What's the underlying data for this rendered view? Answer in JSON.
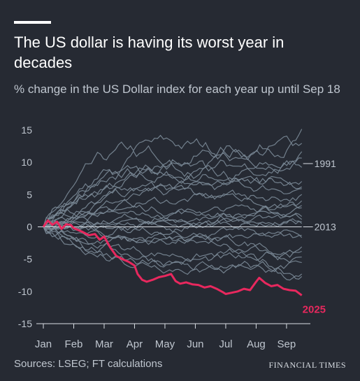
{
  "header": {
    "title": "The US dollar is having its worst year in decades",
    "subtitle": "% change in the US Dollar index for each year up until Sep 18"
  },
  "footer": {
    "source": "Sources: LSEG; FT calculations",
    "brand": "FINANCIAL TIMES"
  },
  "colors": {
    "background": "#262a33",
    "highlight": "#e8285e",
    "history_lines": "#7b8997",
    "text_muted": "#bfc6cf",
    "axis": "#d9dee4"
  },
  "chart_data": {
    "type": "line",
    "title": "The US dollar is having its worst year in decades",
    "subtitle": "% change in the US Dollar index for each year up until Sep 18",
    "ylim": [
      -15,
      15
    ],
    "yticks": [
      15,
      10,
      5,
      0,
      -5,
      -10,
      -15
    ],
    "xlim": [
      0,
      8.6
    ],
    "xticks": [
      {
        "label": "Jan",
        "value": 0
      },
      {
        "label": "Feb",
        "value": 1
      },
      {
        "label": "Mar",
        "value": 2
      },
      {
        "label": "Apr",
        "value": 3
      },
      {
        "label": "May",
        "value": 4
      },
      {
        "label": "Jun",
        "value": 5
      },
      {
        "label": "Jul",
        "value": 6
      },
      {
        "label": "Aug",
        "value": 7
      },
      {
        "label": "Sep",
        "value": 8
      }
    ],
    "grid": false,
    "legend": "none",
    "highlight_series": {
      "name": "2025",
      "x": [
        0,
        0.15,
        0.3,
        0.45,
        0.6,
        0.75,
        0.9,
        1.0,
        1.15,
        1.3,
        1.5,
        1.7,
        1.85,
        2.0,
        2.2,
        2.4,
        2.6,
        2.8,
        3.0,
        3.1,
        3.25,
        3.4,
        3.6,
        3.8,
        4.0,
        4.2,
        4.35,
        4.5,
        4.7,
        4.9,
        5.1,
        5.3,
        5.5,
        5.7,
        5.9,
        6.0,
        6.2,
        6.4,
        6.6,
        6.8,
        7.0,
        7.1,
        7.3,
        7.5,
        7.7,
        7.9,
        8.1,
        8.3,
        8.5
      ],
      "y": [
        0,
        1.0,
        0.3,
        0.8,
        -0.3,
        0.4,
        0.3,
        -0.2,
        -0.5,
        -0.8,
        -1.3,
        -1.1,
        -2.0,
        -1.5,
        -3.2,
        -4.5,
        -5.0,
        -5.4,
        -6.0,
        -7.3,
        -8.2,
        -8.5,
        -8.2,
        -7.8,
        -7.6,
        -7.3,
        -8.4,
        -8.8,
        -8.6,
        -8.9,
        -9.0,
        -9.4,
        -9.2,
        -9.6,
        -10.1,
        -10.4,
        -10.2,
        -10.0,
        -9.6,
        -9.8,
        -8.5,
        -7.9,
        -8.7,
        -9.2,
        -9.0,
        -9.6,
        -9.8,
        -9.9,
        -10.6
      ]
    },
    "historical_series": [
      {
        "name": "1991",
        "end": 9.8,
        "mid": 5.0,
        "vol": 1.6
      },
      {
        "name": "2013",
        "end": 0.0,
        "mid": 1.0,
        "vol": 0.9
      },
      {
        "name": "",
        "end": 14.5,
        "mid": 8.0,
        "vol": 1.8
      },
      {
        "name": "",
        "end": 13.2,
        "mid": 10.5,
        "vol": 1.9
      },
      {
        "name": "",
        "end": 11.8,
        "mid": 6.0,
        "vol": 1.5
      },
      {
        "name": "",
        "end": 8.5,
        "mid": 2.5,
        "vol": 1.4
      },
      {
        "name": "",
        "end": 6.5,
        "mid": 4.5,
        "vol": 1.3
      },
      {
        "name": "",
        "end": 5.2,
        "mid": 3.0,
        "vol": 1.2
      },
      {
        "name": "",
        "end": 4.0,
        "mid": 5.5,
        "vol": 1.2
      },
      {
        "name": "",
        "end": 3.0,
        "mid": 1.5,
        "vol": 1.0
      },
      {
        "name": "",
        "end": 2.0,
        "mid": 3.5,
        "vol": 1.1
      },
      {
        "name": "",
        "end": 1.0,
        "mid": -1.0,
        "vol": 1.0
      },
      {
        "name": "",
        "end": -1.5,
        "mid": 0.5,
        "vol": 1.0
      },
      {
        "name": "",
        "end": -2.5,
        "mid": -1.5,
        "vol": 1.1
      },
      {
        "name": "",
        "end": -3.5,
        "mid": -2.0,
        "vol": 1.2
      },
      {
        "name": "",
        "end": -5.0,
        "mid": -3.0,
        "vol": 1.2
      },
      {
        "name": "",
        "end": -6.0,
        "mid": -4.5,
        "vol": 1.3
      },
      {
        "name": "",
        "end": -7.0,
        "mid": -2.5,
        "vol": 1.3
      },
      {
        "name": "",
        "end": -8.0,
        "mid": -5.5,
        "vol": 1.4
      },
      {
        "name": "",
        "end": 0.8,
        "mid": 2.0,
        "vol": 0.9
      },
      {
        "name": "",
        "end": 10.5,
        "mid": 7.0,
        "vol": 1.6
      },
      {
        "name": "",
        "end": 7.5,
        "mid": 9.0,
        "vol": 1.7
      },
      {
        "name": "",
        "end": -4.0,
        "mid": -0.5,
        "vol": 1.1
      },
      {
        "name": "",
        "end": 2.8,
        "mid": -2.0,
        "vol": 1.2
      }
    ]
  }
}
